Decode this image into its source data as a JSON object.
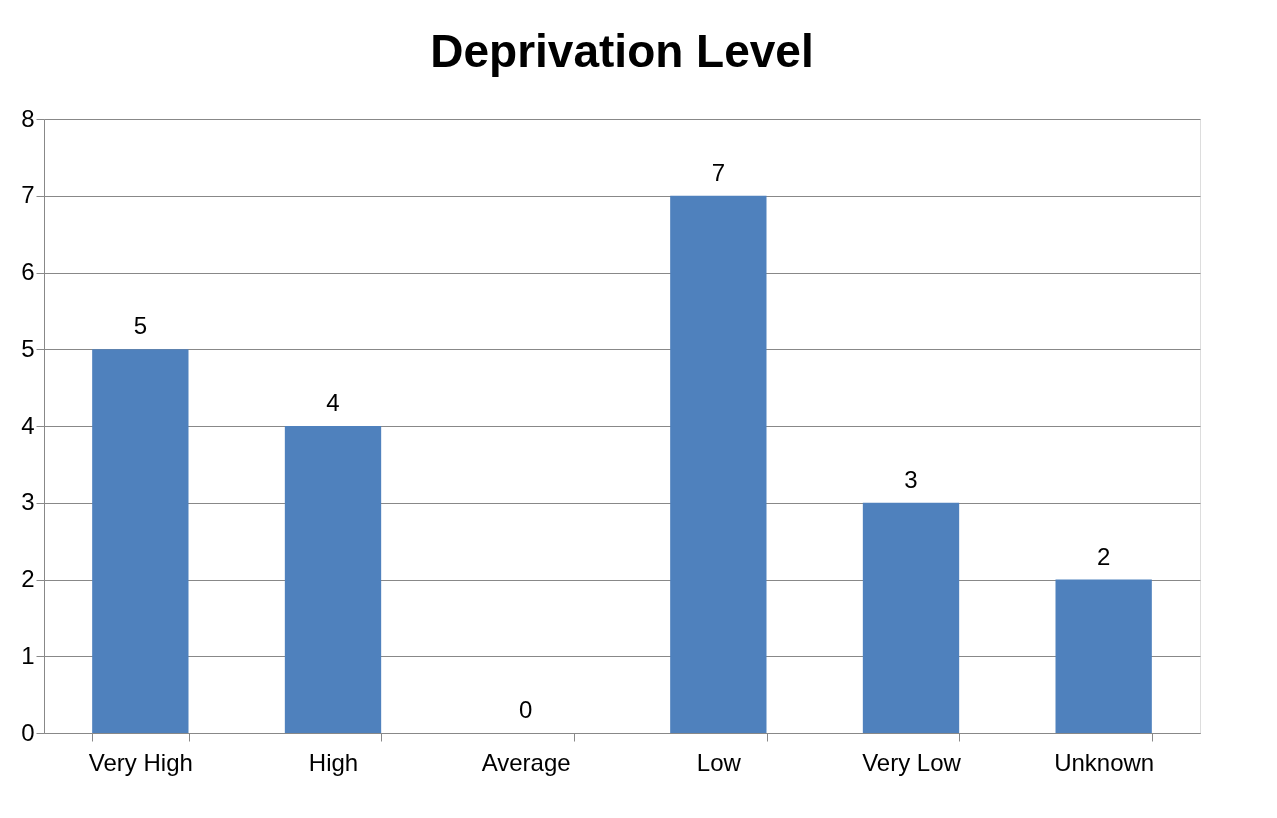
{
  "chart_data": {
    "type": "bar",
    "title": "Deprivation Level",
    "categories": [
      "Very High",
      "High",
      "Average",
      "Low",
      "Very Low",
      "Unknown"
    ],
    "values": [
      5,
      4,
      0,
      7,
      3,
      2
    ],
    "color": "#4f81bd",
    "ylim": [
      0,
      8
    ],
    "yticks": [
      0,
      1,
      2,
      3,
      4,
      5,
      6,
      7,
      8
    ],
    "grid": "y",
    "data_labels": true
  }
}
